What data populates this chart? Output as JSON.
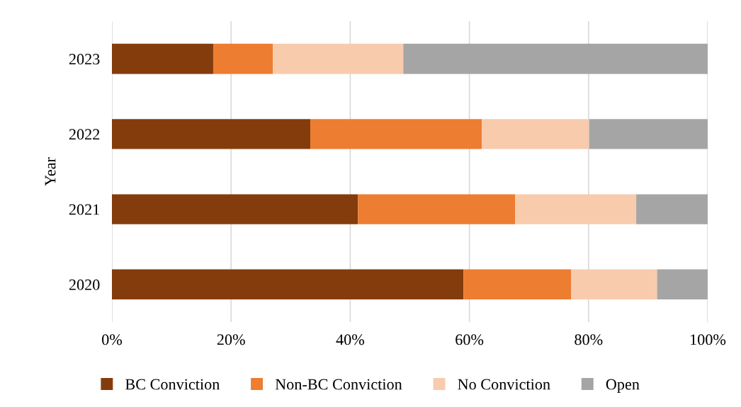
{
  "chart_data": {
    "type": "bar",
    "orientation": "horizontal",
    "stacked": true,
    "ylabel": "Year",
    "categories": [
      "2023",
      "2022",
      "2021",
      "2020"
    ],
    "series": [
      {
        "name": "BC Conviction",
        "color": "#843c0c",
        "values": [
          17.0,
          33.3,
          41.3,
          59.0
        ]
      },
      {
        "name": "Non-BC Conviction",
        "color": "#ed7d31",
        "values": [
          10.0,
          28.8,
          26.4,
          18.1
        ]
      },
      {
        "name": "No Conviction",
        "color": "#f8cbad",
        "values": [
          21.9,
          18.0,
          20.3,
          14.4
        ]
      },
      {
        "name": "Open",
        "color": "#a5a5a5",
        "values": [
          51.1,
          19.9,
          12.0,
          8.5
        ]
      }
    ],
    "xlim": [
      0,
      100
    ],
    "xticks": [
      {
        "value": 0,
        "label": "0%"
      },
      {
        "value": 20,
        "label": "20%"
      },
      {
        "value": 40,
        "label": "40%"
      },
      {
        "value": 60,
        "label": "60%"
      },
      {
        "value": 80,
        "label": "80%"
      },
      {
        "value": 100,
        "label": "100%"
      }
    ],
    "grid": "x",
    "legend": "bottom"
  }
}
